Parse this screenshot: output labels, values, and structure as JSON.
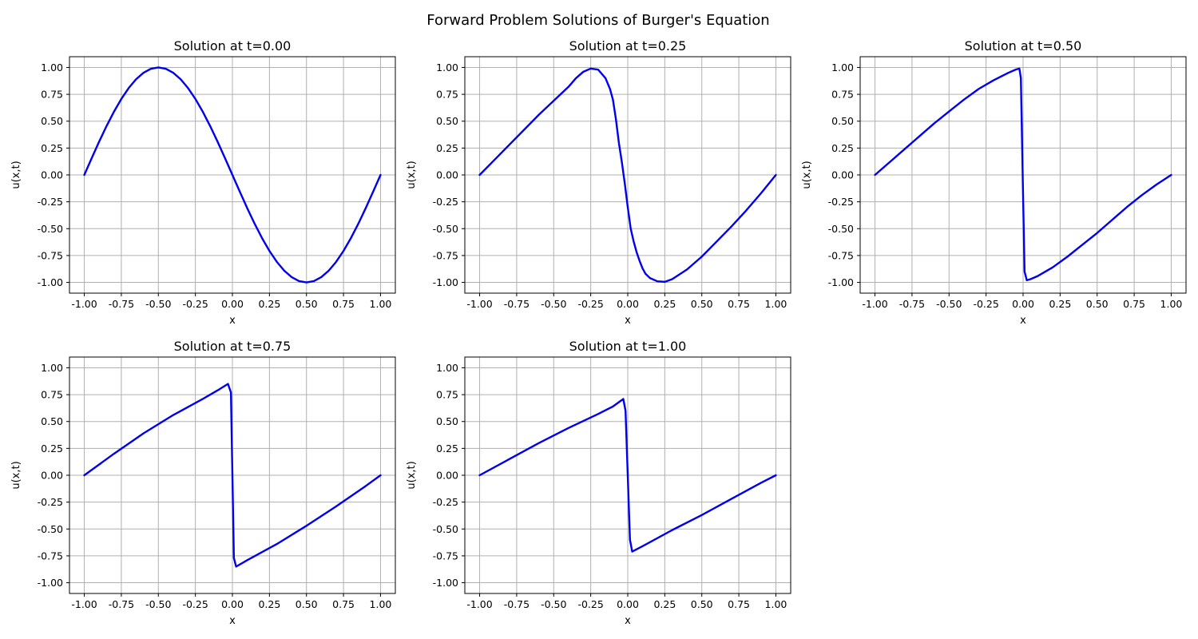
{
  "figure_title": "Forward Problem Solutions of Burger's Equation",
  "line_color": "#0000ee",
  "grid_color": "#b0b0b0",
  "chart_data": [
    {
      "type": "line",
      "title": "Solution at t=0.00",
      "xlabel": "x",
      "ylabel": "u(x,t)",
      "xlim": [
        -1.1,
        1.1
      ],
      "ylim": [
        -1.1,
        1.1
      ],
      "xticks": [
        "-1.00",
        "-0.75",
        "-0.50",
        "-0.25",
        "0.00",
        "0.25",
        "0.50",
        "0.75",
        "1.00"
      ],
      "yticks": [
        "-1.00",
        "-0.75",
        "-0.50",
        "-0.25",
        "0.00",
        "0.25",
        "0.50",
        "0.75",
        "1.00"
      ],
      "grid": true,
      "series": [
        {
          "x": [
            -1.0,
            -0.95,
            -0.9,
            -0.85,
            -0.8,
            -0.75,
            -0.7,
            -0.65,
            -0.6,
            -0.55,
            -0.5,
            -0.45,
            -0.4,
            -0.35,
            -0.3,
            -0.25,
            -0.2,
            -0.15,
            -0.1,
            -0.05,
            0.0,
            0.05,
            0.1,
            0.15,
            0.2,
            0.25,
            0.3,
            0.35,
            0.4,
            0.45,
            0.5,
            0.55,
            0.6,
            0.65,
            0.7,
            0.75,
            0.8,
            0.85,
            0.9,
            0.95,
            1.0
          ],
          "y": [
            0.0,
            0.156,
            0.309,
            0.454,
            0.588,
            0.707,
            0.809,
            0.891,
            0.951,
            0.988,
            1.0,
            0.988,
            0.951,
            0.891,
            0.809,
            0.707,
            0.588,
            0.454,
            0.309,
            0.156,
            0.0,
            -0.156,
            -0.309,
            -0.454,
            -0.588,
            -0.707,
            -0.809,
            -0.891,
            -0.951,
            -0.988,
            -1.0,
            -0.988,
            -0.951,
            -0.891,
            -0.809,
            -0.707,
            -0.588,
            -0.454,
            -0.309,
            -0.156,
            0.0
          ]
        }
      ]
    },
    {
      "type": "line",
      "title": "Solution at t=0.25",
      "xlabel": "x",
      "ylabel": "u(x,t)",
      "xlim": [
        -1.1,
        1.1
      ],
      "ylim": [
        -1.1,
        1.1
      ],
      "xticks": [
        "-1.00",
        "-0.75",
        "-0.50",
        "-0.25",
        "0.00",
        "0.25",
        "0.50",
        "0.75",
        "1.00"
      ],
      "yticks": [
        "-1.00",
        "-0.75",
        "-0.50",
        "-0.25",
        "0.00",
        "0.25",
        "0.50",
        "0.75",
        "1.00"
      ],
      "grid": true,
      "series": [
        {
          "x": [
            -1.0,
            -0.9,
            -0.8,
            -0.7,
            -0.6,
            -0.5,
            -0.4,
            -0.35,
            -0.3,
            -0.25,
            -0.2,
            -0.15,
            -0.12,
            -0.1,
            -0.08,
            -0.06,
            -0.04,
            -0.02,
            0.0,
            0.02,
            0.04,
            0.06,
            0.08,
            0.1,
            0.12,
            0.15,
            0.2,
            0.25,
            0.3,
            0.4,
            0.5,
            0.6,
            0.7,
            0.8,
            0.9,
            1.0
          ],
          "y": [
            0.0,
            0.14,
            0.28,
            0.42,
            0.56,
            0.69,
            0.82,
            0.9,
            0.96,
            0.99,
            0.98,
            0.9,
            0.8,
            0.7,
            0.52,
            0.3,
            0.12,
            -0.08,
            -0.3,
            -0.5,
            -0.62,
            -0.72,
            -0.8,
            -0.87,
            -0.92,
            -0.96,
            -0.99,
            -0.995,
            -0.97,
            -0.88,
            -0.76,
            -0.62,
            -0.48,
            -0.33,
            -0.17,
            0.0
          ]
        }
      ]
    },
    {
      "type": "line",
      "title": "Solution at t=0.50",
      "xlabel": "x",
      "ylabel": "u(x,t)",
      "xlim": [
        -1.1,
        1.1
      ],
      "ylim": [
        -1.1,
        1.1
      ],
      "xticks": [
        "-1.00",
        "-0.75",
        "-0.50",
        "-0.25",
        "0.00",
        "0.25",
        "0.50",
        "0.75",
        "1.00"
      ],
      "yticks": [
        "-1.00",
        "-0.75",
        "-0.50",
        "-0.25",
        "0.00",
        "0.25",
        "0.50",
        "0.75",
        "1.00"
      ],
      "grid": true,
      "series": [
        {
          "x": [
            -1.0,
            -0.9,
            -0.8,
            -0.7,
            -0.6,
            -0.5,
            -0.4,
            -0.3,
            -0.2,
            -0.1,
            -0.05,
            -0.025,
            -0.015,
            0.0,
            0.01,
            0.025,
            0.05,
            0.1,
            0.2,
            0.3,
            0.4,
            0.5,
            0.6,
            0.7,
            0.8,
            0.9,
            1.0
          ],
          "y": [
            0.0,
            0.12,
            0.24,
            0.36,
            0.48,
            0.59,
            0.7,
            0.8,
            0.88,
            0.95,
            0.98,
            0.99,
            0.9,
            -0.2,
            -0.9,
            -0.98,
            -0.97,
            -0.94,
            -0.86,
            -0.76,
            -0.65,
            -0.54,
            -0.42,
            -0.3,
            -0.19,
            -0.09,
            0.0
          ]
        }
      ]
    },
    {
      "type": "line",
      "title": "Solution at t=0.75",
      "xlabel": "x",
      "ylabel": "u(x,t)",
      "xlim": [
        -1.1,
        1.1
      ],
      "ylim": [
        -1.1,
        1.1
      ],
      "xticks": [
        "-1.00",
        "-0.75",
        "-0.50",
        "-0.25",
        "0.00",
        "0.25",
        "0.50",
        "0.75",
        "1.00"
      ],
      "yticks": [
        "-1.00",
        "-0.75",
        "-0.50",
        "-0.25",
        "0.00",
        "0.25",
        "0.50",
        "0.75",
        "1.00"
      ],
      "grid": true,
      "series": [
        {
          "x": [
            -1.0,
            -0.8,
            -0.6,
            -0.4,
            -0.2,
            -0.1,
            -0.03,
            -0.01,
            0.0,
            0.01,
            0.025,
            0.1,
            0.3,
            0.5,
            0.7,
            0.9,
            1.0
          ],
          "y": [
            0.0,
            0.2,
            0.39,
            0.56,
            0.71,
            0.79,
            0.85,
            0.77,
            0.0,
            -0.77,
            -0.85,
            -0.79,
            -0.64,
            -0.47,
            -0.29,
            -0.1,
            0.0
          ]
        }
      ]
    },
    {
      "type": "line",
      "title": "Solution at t=1.00",
      "xlabel": "x",
      "ylabel": "u(x,t)",
      "xlim": [
        -1.1,
        1.1
      ],
      "ylim": [
        -1.1,
        1.1
      ],
      "xticks": [
        "-1.00",
        "-0.75",
        "-0.50",
        "-0.25",
        "0.00",
        "0.25",
        "0.50",
        "0.75",
        "1.00"
      ],
      "yticks": [
        "-1.00",
        "-0.75",
        "-0.50",
        "-0.25",
        "0.00",
        "0.25",
        "0.50",
        "0.75",
        "1.00"
      ],
      "grid": true,
      "series": [
        {
          "x": [
            -1.0,
            -0.8,
            -0.6,
            -0.4,
            -0.2,
            -0.1,
            -0.03,
            -0.015,
            0.0,
            0.015,
            0.03,
            0.1,
            0.3,
            0.5,
            0.7,
            0.9,
            1.0
          ],
          "y": [
            0.0,
            0.15,
            0.3,
            0.44,
            0.57,
            0.64,
            0.71,
            0.6,
            0.0,
            -0.6,
            -0.71,
            -0.66,
            -0.51,
            -0.37,
            -0.22,
            -0.07,
            0.0
          ]
        }
      ]
    }
  ]
}
